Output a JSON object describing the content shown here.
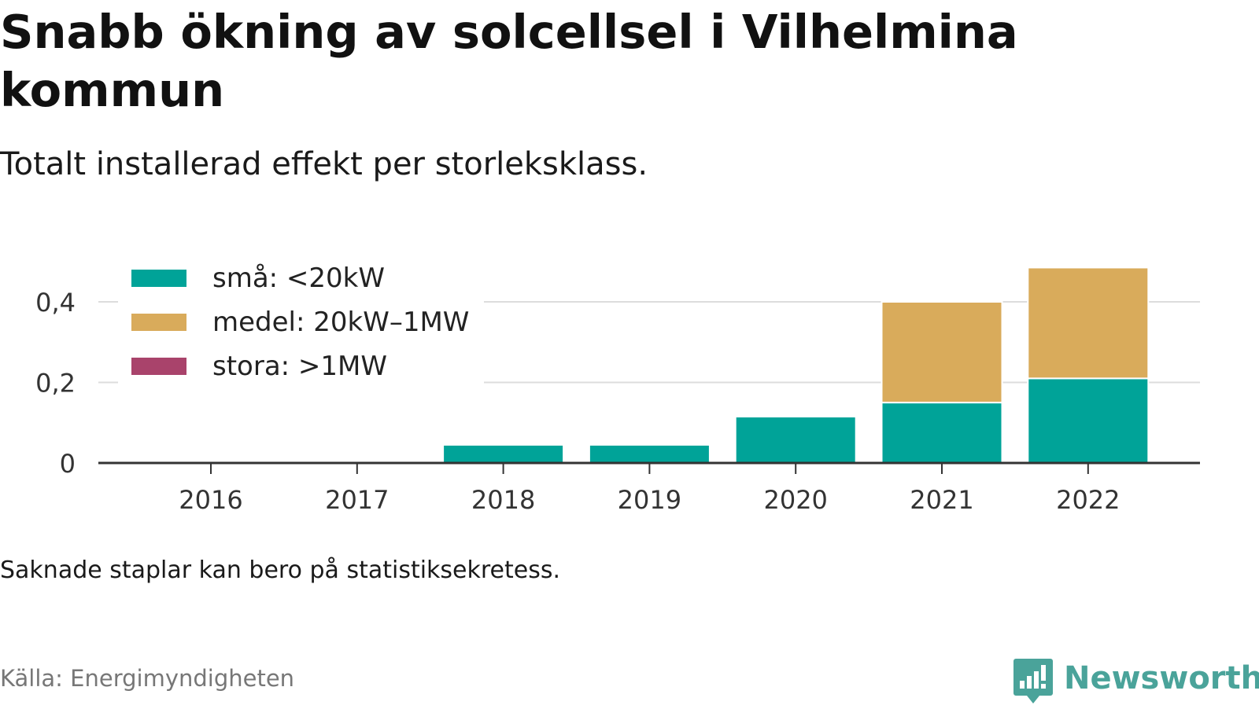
{
  "header": {
    "title": "Snabb ökning av solcellsel i Vilhelmina kommun",
    "subtitle": "Totalt installerad effekt per storleksklass."
  },
  "footer": {
    "note": "Saknade staplar kan bero på statistiksekretess.",
    "source": "Källa: Energimyndigheten",
    "brand": "Newsworthy",
    "brand_color": "#4aa39a"
  },
  "chart_data": {
    "type": "bar",
    "stacked": true,
    "categories": [
      "2016",
      "2017",
      "2018",
      "2019",
      "2020",
      "2021",
      "2022"
    ],
    "series": [
      {
        "name": "små: <20kW",
        "color": "#00a398",
        "values": [
          0,
          0,
          0.045,
          0.045,
          0.115,
          0.15,
          0.21
        ]
      },
      {
        "name": "medel: 20kW–1MW",
        "color": "#d9ab5b",
        "values": [
          0,
          0,
          0,
          0,
          0,
          0.25,
          0.275
        ]
      },
      {
        "name": "stora: >1MW",
        "color": "#a9436b",
        "values": [
          0,
          0,
          0,
          0,
          0,
          0,
          0
        ]
      }
    ],
    "yticks": [
      0,
      0.2,
      0.4
    ],
    "ytick_labels": [
      "0",
      "0,2",
      "0,4"
    ],
    "ylim": [
      0,
      0.5
    ],
    "grid": true,
    "legend_position": "top-left"
  }
}
